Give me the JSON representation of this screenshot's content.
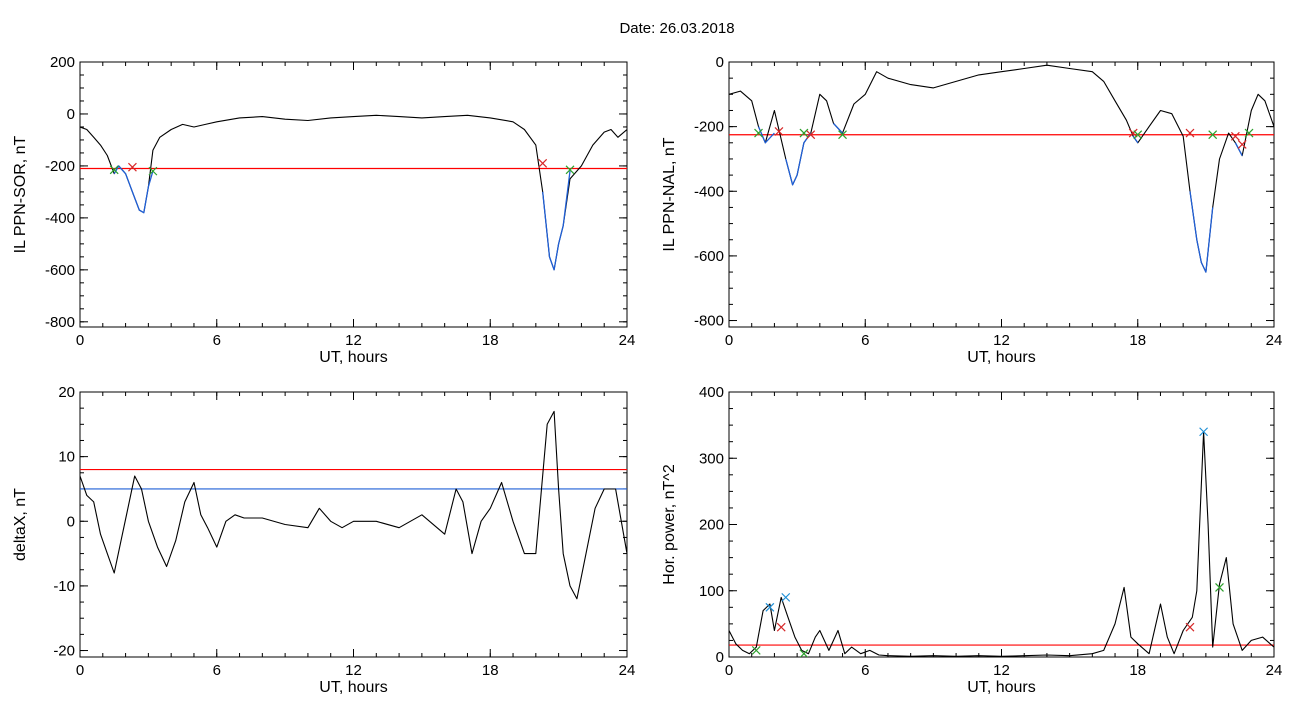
{
  "page": {
    "header_title": "Date:  26.03.2018"
  },
  "chart_data": [
    {
      "type": "line",
      "xlabel": "UT, hours",
      "ylabel": "IL PPN-SOR, nT",
      "xlim": [
        0,
        24
      ],
      "ylim": [
        -820,
        200
      ],
      "xticks": [
        0,
        6,
        12,
        18,
        24
      ],
      "yticks": [
        200,
        0,
        -200,
        -400,
        -600,
        -800
      ],
      "threshold_lines": [
        {
          "value": -210,
          "color": "#ff0000"
        }
      ],
      "series": [
        {
          "color": "#000000",
          "x": [
            0,
            0.3,
            0.6,
            0.9,
            1.2,
            1.5,
            1.7,
            2.0,
            2.3,
            2.6,
            2.8,
            3.0,
            3.2,
            3.5,
            4.0,
            4.5,
            5.0,
            5.5,
            6.0,
            7.0,
            8.0,
            9.0,
            10.0,
            11.0,
            12.0,
            13.0,
            14.0,
            15.0,
            16.0,
            17.0,
            18.0,
            19.0,
            19.5,
            20.0,
            20.3,
            20.6,
            20.8,
            21.0,
            21.2,
            21.5,
            22.0,
            22.5,
            23.0,
            23.3,
            23.6,
            24.0
          ],
          "y": [
            -50,
            -60,
            -90,
            -120,
            -160,
            -230,
            -200,
            -230,
            -300,
            -370,
            -380,
            -280,
            -140,
            -90,
            -60,
            -40,
            -50,
            -40,
            -30,
            -15,
            -10,
            -20,
            -25,
            -15,
            -10,
            -5,
            -10,
            -15,
            -10,
            -5,
            -15,
            -30,
            -60,
            -120,
            -300,
            -550,
            -600,
            -500,
            -430,
            -250,
            -200,
            -120,
            -70,
            -60,
            -90,
            -60
          ]
        },
        {
          "color": "#1f5fd6",
          "x": [
            1.5,
            1.7,
            2.0,
            2.3,
            2.6,
            2.8,
            3.0,
            3.2
          ],
          "y": [
            -230,
            -200,
            -230,
            -300,
            -370,
            -380,
            -280,
            -220
          ]
        },
        {
          "color": "#1f5fd6",
          "x": [
            20.3,
            20.6,
            20.8,
            21.0,
            21.2,
            21.5
          ],
          "y": [
            -300,
            -550,
            -600,
            -500,
            -430,
            -220
          ]
        }
      ],
      "markers": [
        {
          "x": 1.5,
          "y": -215,
          "color": "#2ca02c"
        },
        {
          "x": 2.3,
          "y": -205,
          "color": "#d62728"
        },
        {
          "x": 3.2,
          "y": -220,
          "color": "#2ca02c"
        },
        {
          "x": 20.3,
          "y": -190,
          "color": "#d62728"
        },
        {
          "x": 21.5,
          "y": -215,
          "color": "#2ca02c"
        }
      ]
    },
    {
      "type": "line",
      "xlabel": "UT, hours",
      "ylabel": "IL PPN-NAL, nT",
      "xlim": [
        0,
        24
      ],
      "ylim": [
        -820,
        0
      ],
      "xticks": [
        0,
        6,
        12,
        18,
        24
      ],
      "yticks": [
        0,
        -200,
        -400,
        -600,
        -800
      ],
      "threshold_lines": [
        {
          "value": -225,
          "color": "#ff0000"
        }
      ],
      "series": [
        {
          "color": "#000000",
          "x": [
            0,
            0.5,
            1.0,
            1.3,
            1.6,
            2.0,
            2.5,
            2.8,
            3.0,
            3.3,
            3.6,
            4.0,
            4.3,
            4.6,
            5.0,
            5.5,
            6.0,
            6.5,
            7.0,
            8.0,
            9.0,
            10.0,
            11.0,
            12.0,
            13.0,
            14.0,
            15.0,
            16.0,
            16.5,
            17.0,
            17.5,
            17.8,
            18.0,
            18.5,
            19.0,
            19.5,
            20.0,
            20.3,
            20.6,
            20.8,
            21.0,
            21.3,
            21.6,
            22.0,
            22.3,
            22.6,
            23.0,
            23.3,
            23.6,
            24.0
          ],
          "y": [
            -100,
            -90,
            -120,
            -200,
            -250,
            -150,
            -300,
            -380,
            -350,
            -250,
            -220,
            -100,
            -120,
            -190,
            -220,
            -130,
            -100,
            -30,
            -50,
            -70,
            -80,
            -60,
            -40,
            -30,
            -20,
            -10,
            -20,
            -30,
            -60,
            -120,
            -180,
            -230,
            -250,
            -200,
            -150,
            -160,
            -230,
            -400,
            -550,
            -620,
            -650,
            -450,
            -300,
            -220,
            -250,
            -290,
            -150,
            -100,
            -120,
            -200
          ]
        },
        {
          "color": "#1f5fd6",
          "x": [
            1.3,
            1.6,
            2.0
          ],
          "y": [
            -200,
            -250,
            -220
          ]
        },
        {
          "color": "#1f5fd6",
          "x": [
            2.5,
            2.8,
            3.0,
            3.3,
            3.6
          ],
          "y": [
            -300,
            -380,
            -350,
            -250,
            -220
          ]
        },
        {
          "color": "#1f5fd6",
          "x": [
            4.6,
            5.0
          ],
          "y": [
            -190,
            -220
          ]
        },
        {
          "color": "#1f5fd6",
          "x": [
            17.8,
            18.0
          ],
          "y": [
            -230,
            -250
          ]
        },
        {
          "color": "#1f5fd6",
          "x": [
            20.3,
            20.6,
            20.8,
            21.0,
            21.3
          ],
          "y": [
            -400,
            -550,
            -620,
            -650,
            -450
          ]
        },
        {
          "color": "#1f5fd6",
          "x": [
            22.3,
            22.6
          ],
          "y": [
            -250,
            -290
          ]
        }
      ],
      "markers": [
        {
          "x": 1.3,
          "y": -220,
          "color": "#2ca02c"
        },
        {
          "x": 2.2,
          "y": -215,
          "color": "#d62728"
        },
        {
          "x": 3.3,
          "y": -220,
          "color": "#2ca02c"
        },
        {
          "x": 3.6,
          "y": -225,
          "color": "#d62728"
        },
        {
          "x": 5.0,
          "y": -225,
          "color": "#2ca02c"
        },
        {
          "x": 17.8,
          "y": -220,
          "color": "#d62728"
        },
        {
          "x": 18.0,
          "y": -225,
          "color": "#2ca02c"
        },
        {
          "x": 20.3,
          "y": -220,
          "color": "#d62728"
        },
        {
          "x": 21.3,
          "y": -225,
          "color": "#2ca02c"
        },
        {
          "x": 22.3,
          "y": -230,
          "color": "#d62728"
        },
        {
          "x": 22.6,
          "y": -255,
          "color": "#d62728"
        },
        {
          "x": 22.9,
          "y": -220,
          "color": "#2ca02c"
        }
      ]
    },
    {
      "type": "line",
      "xlabel": "UT, hours",
      "ylabel": "deltaX, nT",
      "xlim": [
        0,
        24
      ],
      "ylim": [
        -21,
        20
      ],
      "xticks": [
        0,
        6,
        12,
        18,
        24
      ],
      "yticks": [
        20,
        10,
        0,
        -10,
        -20
      ],
      "threshold_lines": [
        {
          "value": 8,
          "color": "#ff0000"
        },
        {
          "value": 5,
          "color": "#1f5fd6"
        }
      ],
      "series": [
        {
          "color": "#000000",
          "x": [
            0,
            0.3,
            0.6,
            0.9,
            1.2,
            1.5,
            1.8,
            2.1,
            2.4,
            2.7,
            3.0,
            3.4,
            3.8,
            4.2,
            4.6,
            5.0,
            5.3,
            5.6,
            6.0,
            6.4,
            6.8,
            7.2,
            8.0,
            9.0,
            10.0,
            10.5,
            11.0,
            11.5,
            12.0,
            13.0,
            14.0,
            15.0,
            16.0,
            16.5,
            16.8,
            17.2,
            17.6,
            18.0,
            18.5,
            19.0,
            19.5,
            20.0,
            20.5,
            20.8,
            21.0,
            21.2,
            21.5,
            21.8,
            22.2,
            22.6,
            23.0,
            23.5,
            24.0
          ],
          "y": [
            7,
            4,
            3,
            -2,
            -5,
            -8,
            -3,
            2,
            7,
            5,
            0,
            -4,
            -7,
            -3,
            3,
            6,
            1,
            -1,
            -4,
            0,
            1,
            0.5,
            0.5,
            -0.5,
            -1,
            2,
            0,
            -1,
            0,
            0,
            -1,
            1,
            -2,
            5,
            3,
            -5,
            0,
            2,
            6,
            0,
            -5,
            -5,
            15,
            17,
            5,
            -5,
            -10,
            -12,
            -5,
            2,
            5,
            5,
            -5
          ]
        }
      ],
      "markers": []
    },
    {
      "type": "line",
      "xlabel": "UT, hours",
      "ylabel": "Hor. power, nT^2",
      "xlim": [
        0,
        24
      ],
      "ylim": [
        0,
        400
      ],
      "xticks": [
        0,
        6,
        12,
        18,
        24
      ],
      "yticks": [
        400,
        300,
        200,
        100,
        0
      ],
      "threshold_lines": [
        {
          "value": 18,
          "color": "#ff0000"
        }
      ],
      "series": [
        {
          "color": "#000000",
          "x": [
            0,
            0.3,
            0.6,
            0.9,
            1.2,
            1.5,
            1.8,
            2.0,
            2.3,
            2.6,
            2.9,
            3.2,
            3.5,
            3.8,
            4.0,
            4.4,
            4.8,
            5.1,
            5.4,
            5.8,
            6.2,
            6.6,
            7.0,
            8.0,
            9.0,
            10.0,
            11.0,
            12.0,
            13.0,
            14.0,
            15.0,
            16.0,
            16.5,
            17.0,
            17.4,
            17.7,
            18.0,
            18.5,
            19.0,
            19.3,
            19.6,
            20.0,
            20.4,
            20.6,
            20.9,
            21.1,
            21.3,
            21.6,
            21.9,
            22.2,
            22.6,
            23.0,
            23.5,
            24.0
          ],
          "y": [
            40,
            20,
            10,
            5,
            15,
            70,
            80,
            40,
            90,
            60,
            30,
            10,
            5,
            30,
            40,
            10,
            40,
            5,
            15,
            5,
            10,
            3,
            2,
            1,
            2,
            1,
            2,
            1,
            2,
            3,
            2,
            5,
            10,
            50,
            105,
            30,
            20,
            5,
            80,
            30,
            5,
            40,
            60,
            100,
            340,
            200,
            15,
            110,
            150,
            50,
            10,
            25,
            30,
            15
          ]
        }
      ],
      "markers": [
        {
          "x": 1.2,
          "y": 10,
          "color": "#2ca02c"
        },
        {
          "x": 1.8,
          "y": 75,
          "color": "#1f8fd6"
        },
        {
          "x": 2.3,
          "y": 45,
          "color": "#d62728"
        },
        {
          "x": 2.5,
          "y": 90,
          "color": "#1f8fd6"
        },
        {
          "x": 3.3,
          "y": 5,
          "color": "#2ca02c"
        },
        {
          "x": 20.3,
          "y": 45,
          "color": "#d62728"
        },
        {
          "x": 20.9,
          "y": 340,
          "color": "#1f8fd6"
        },
        {
          "x": 21.6,
          "y": 105,
          "color": "#2ca02c"
        }
      ]
    }
  ]
}
